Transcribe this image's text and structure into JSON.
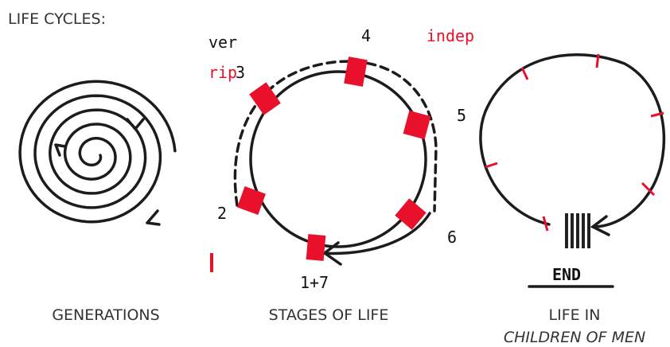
{
  "title": "LIFE CYCLES:",
  "panels": [
    {
      "caption": "GENERATIONS"
    },
    {
      "caption": "STAGES OF LIFE",
      "labels": [
        "4",
        "3",
        "2",
        "1+7",
        "6",
        "ver",
        "indep",
        "rip"
      ]
    },
    {
      "caption_lines": [
        "LIFE IN",
        "CHILDREN OF MEN"
      ],
      "labels": [
        "5",
        "END"
      ]
    }
  ]
}
